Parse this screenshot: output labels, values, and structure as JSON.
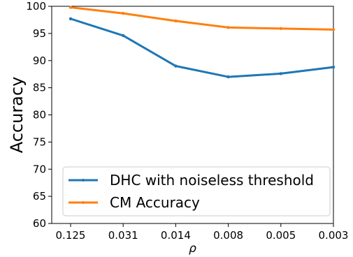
{
  "chart_data": {
    "type": "line",
    "title": "",
    "xlabel": "ρ",
    "ylabel": "Accuracy",
    "categories": [
      "0.125",
      "0.031",
      "0.014",
      "0.008",
      "0.005",
      "0.003"
    ],
    "ylim": [
      60,
      100
    ],
    "yticks": [
      60,
      65,
      70,
      75,
      80,
      85,
      90,
      95,
      100
    ],
    "grid": false,
    "legend_position": "lower-left",
    "series": [
      {
        "name": "DHC with noiseless threshold",
        "color": "#1f77b4",
        "values": [
          97.7,
          94.6,
          89.0,
          87.0,
          87.6,
          88.8
        ]
      },
      {
        "name": "CM Accuracy",
        "color": "#ff7f0e",
        "values": [
          99.8,
          98.7,
          97.3,
          96.1,
          95.9,
          95.7
        ]
      }
    ]
  }
}
